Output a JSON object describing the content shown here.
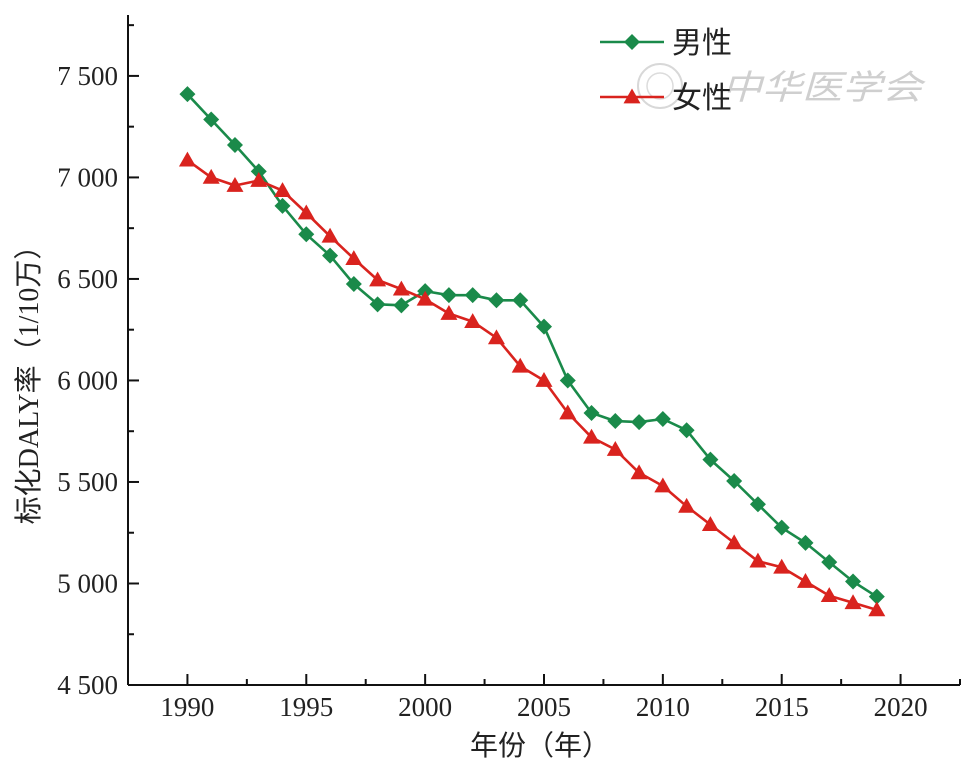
{
  "chart_data": {
    "type": "line",
    "xlabel": "年份（年）",
    "ylabel": "标化DALY率（1/10万）",
    "xlim": [
      1987.5,
      2022.5
    ],
    "ylim": [
      4500,
      7800
    ],
    "x_ticks": [
      1990,
      1995,
      2000,
      2005,
      2010,
      2015,
      2020
    ],
    "x_tick_labels": [
      "1990",
      "1995",
      "2000",
      "2005",
      "2010",
      "2015",
      "2020"
    ],
    "y_ticks": [
      4500,
      5000,
      5500,
      6000,
      6500,
      7000,
      7500
    ],
    "y_tick_labels": [
      "4 500",
      "5 000",
      "5 500",
      "6 000",
      "6 500",
      "7 000",
      "7 500"
    ],
    "legend_position": "top-right",
    "grid": false,
    "x": [
      1990,
      1991,
      1992,
      1993,
      1994,
      1995,
      1996,
      1997,
      1998,
      1999,
      2000,
      2001,
      2002,
      2003,
      2004,
      2005,
      2006,
      2007,
      2008,
      2009,
      2010,
      2011,
      2012,
      2013,
      2014,
      2015,
      2016,
      2017,
      2018,
      2019
    ],
    "series": [
      {
        "name": "男性",
        "color": "#1a8a4a",
        "marker": "diamond",
        "values": [
          7410,
          7285,
          7160,
          7030,
          6860,
          6720,
          6615,
          6475,
          6375,
          6370,
          6440,
          6420,
          6420,
          6395,
          6395,
          6265,
          6000,
          5840,
          5800,
          5795,
          5810,
          5755,
          5610,
          5505,
          5390,
          5275,
          5200,
          5105,
          5010,
          4935
        ]
      },
      {
        "name": "女性",
        "color": "#d9231e",
        "marker": "triangle",
        "values": [
          7085,
          7000,
          6960,
          6985,
          6935,
          6825,
          6710,
          6600,
          6495,
          6450,
          6400,
          6330,
          6290,
          6210,
          6070,
          6000,
          5840,
          5720,
          5660,
          5545,
          5480,
          5380,
          5290,
          5200,
          5110,
          5080,
          5010,
          4940,
          4905,
          4870
        ]
      }
    ]
  },
  "watermark": "中华医学会"
}
